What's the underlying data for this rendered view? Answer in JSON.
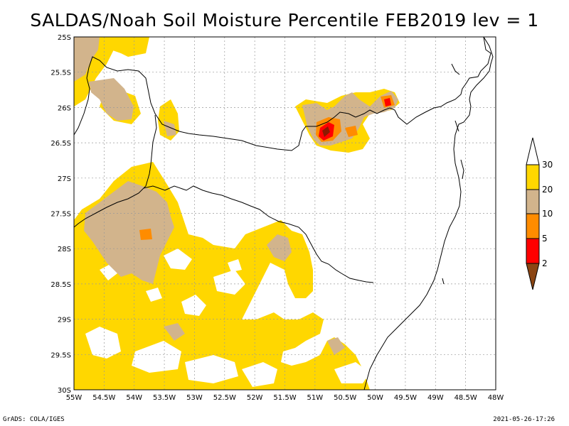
{
  "title": "SALDAS/Noah Soil Moisture Percentile FEB2019 lev = 1",
  "footer": {
    "left": "GrADS: COLA/IGES",
    "right": "2021-05-26-17:26"
  },
  "map": {
    "lon_range": [
      -55,
      -48
    ],
    "lat_range": [
      -30,
      -25
    ],
    "x_tick_labels": [
      "55W",
      "54.5W",
      "54W",
      "53.5W",
      "53W",
      "52.5W",
      "52W",
      "51.5W",
      "51W",
      "50.5W",
      "50W",
      "49.5W",
      "49W",
      "48.5W",
      "48W"
    ],
    "y_tick_labels": [
      "25S",
      "25.5S",
      "26S",
      "26.5S",
      "27S",
      "27.5S",
      "28S",
      "28.5S",
      "29S",
      "29.5S",
      "30S"
    ],
    "grid": true
  },
  "colorbar": {
    "labels": [
      "30",
      "20",
      "10",
      "5",
      "2"
    ],
    "colors": {
      "over_30": "#ffffff",
      "20_30": "#ffd700",
      "10_20": "#d2b48c",
      "5_10": "#ff8c00",
      "2_5": "#ff0000",
      "under_2": "#8b4513"
    }
  }
}
